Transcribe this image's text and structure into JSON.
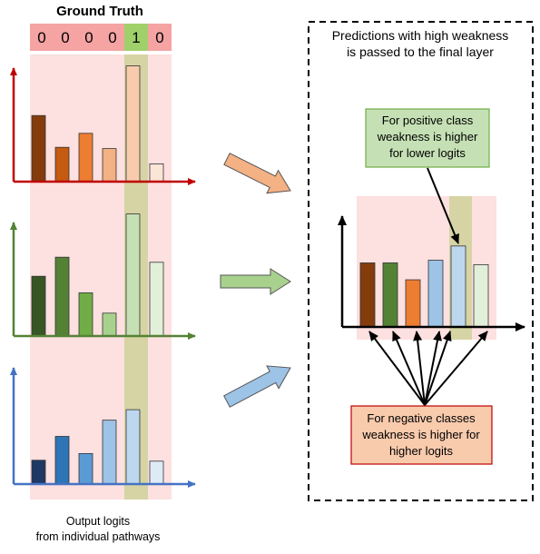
{
  "ground_truth": {
    "title": "Ground Truth",
    "labels": [
      "0",
      "0",
      "0",
      "0",
      "1",
      "0"
    ],
    "positive_index": 4,
    "negative_color": "#f5a3a3",
    "positive_color": "#9fd06a"
  },
  "panels": [
    {
      "name": "red-pathway",
      "axis_color": "#c00000",
      "bar_colors": [
        "#843c0c",
        "#c55a11",
        "#ed7d31",
        "#f4b183",
        "#f8cbad",
        "#fbe5d6"
      ],
      "values": [
        0.52,
        0.27,
        0.38,
        0.26,
        0.91,
        0.14
      ]
    },
    {
      "name": "green-pathway",
      "axis_color": "#548235",
      "bar_colors": [
        "#375623",
        "#548235",
        "#70ad47",
        "#a9d18e",
        "#c5e0b4",
        "#e2f0d9"
      ],
      "values": [
        0.47,
        0.62,
        0.34,
        0.18,
        0.96,
        0.58
      ]
    },
    {
      "name": "blue-pathway",
      "axis_color": "#4472c4",
      "bar_colors": [
        "#203864",
        "#2e75b6",
        "#5b9bd5",
        "#9dc3e6",
        "#bdd7ee",
        "#deebf7"
      ],
      "values": [
        0.25,
        0.5,
        0.32,
        0.67,
        0.78,
        0.24
      ]
    }
  ],
  "arrow_colors": [
    "#f4b183",
    "#a9d18e",
    "#9dc3e6"
  ],
  "caption": [
    "Output logits",
    "from individual pathways"
  ],
  "final_box": {
    "title": [
      "Predictions with high weakness",
      "is passed to the final layer"
    ]
  },
  "final_chart": {
    "bar_colors": [
      "#843c0c",
      "#548235",
      "#ed7d31",
      "#9dc3e6",
      "#bdd7ee",
      "#e2f0d9"
    ],
    "values": [
      0.72,
      0.72,
      0.53,
      0.75,
      0.91,
      0.7
    ]
  },
  "positive_note": {
    "lines": [
      "For positive class",
      "weakness is higher",
      "for lower logits"
    ],
    "bg": "#c5e0b4",
    "border": "#70ad47"
  },
  "negative_note": {
    "lines": [
      "For negative classes",
      "weakness is higher for",
      "higher logits"
    ],
    "bg": "#f8cbad",
    "border": "#c00000"
  }
}
